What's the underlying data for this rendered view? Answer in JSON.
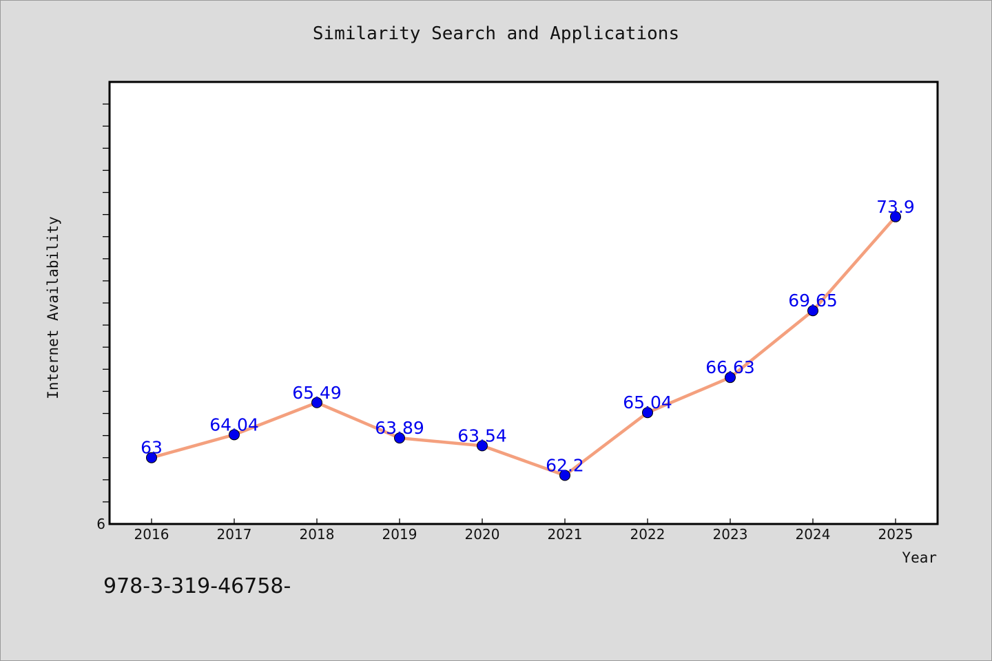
{
  "chart_data": {
    "type": "line",
    "title": "Similarity Search and Applications",
    "xlabel": "Year",
    "ylabel": "Internet Availability",
    "x": [
      "2016",
      "2017",
      "2018",
      "2019",
      "2020",
      "2021",
      "2022",
      "2023",
      "2024",
      "2025"
    ],
    "series": [
      {
        "values": [
          63,
          64.04,
          65.49,
          63.89,
          63.54,
          62.2,
          65.04,
          66.63,
          69.65,
          73.9
        ],
        "data_labels": [
          "63",
          "64.04",
          "65.49",
          "63.89",
          "63.54",
          "62.2",
          "65.04",
          "66.63",
          "69.65",
          "73.9"
        ],
        "line_color": "#f4a07e",
        "marker_color": "#0000ee",
        "label_color": "#0000ee"
      }
    ],
    "y_tick_labels": [
      "6"
    ],
    "ylim": [
      60,
      80
    ],
    "grid": false,
    "legend": "none"
  },
  "footer_note": "978-3-319-46758-"
}
